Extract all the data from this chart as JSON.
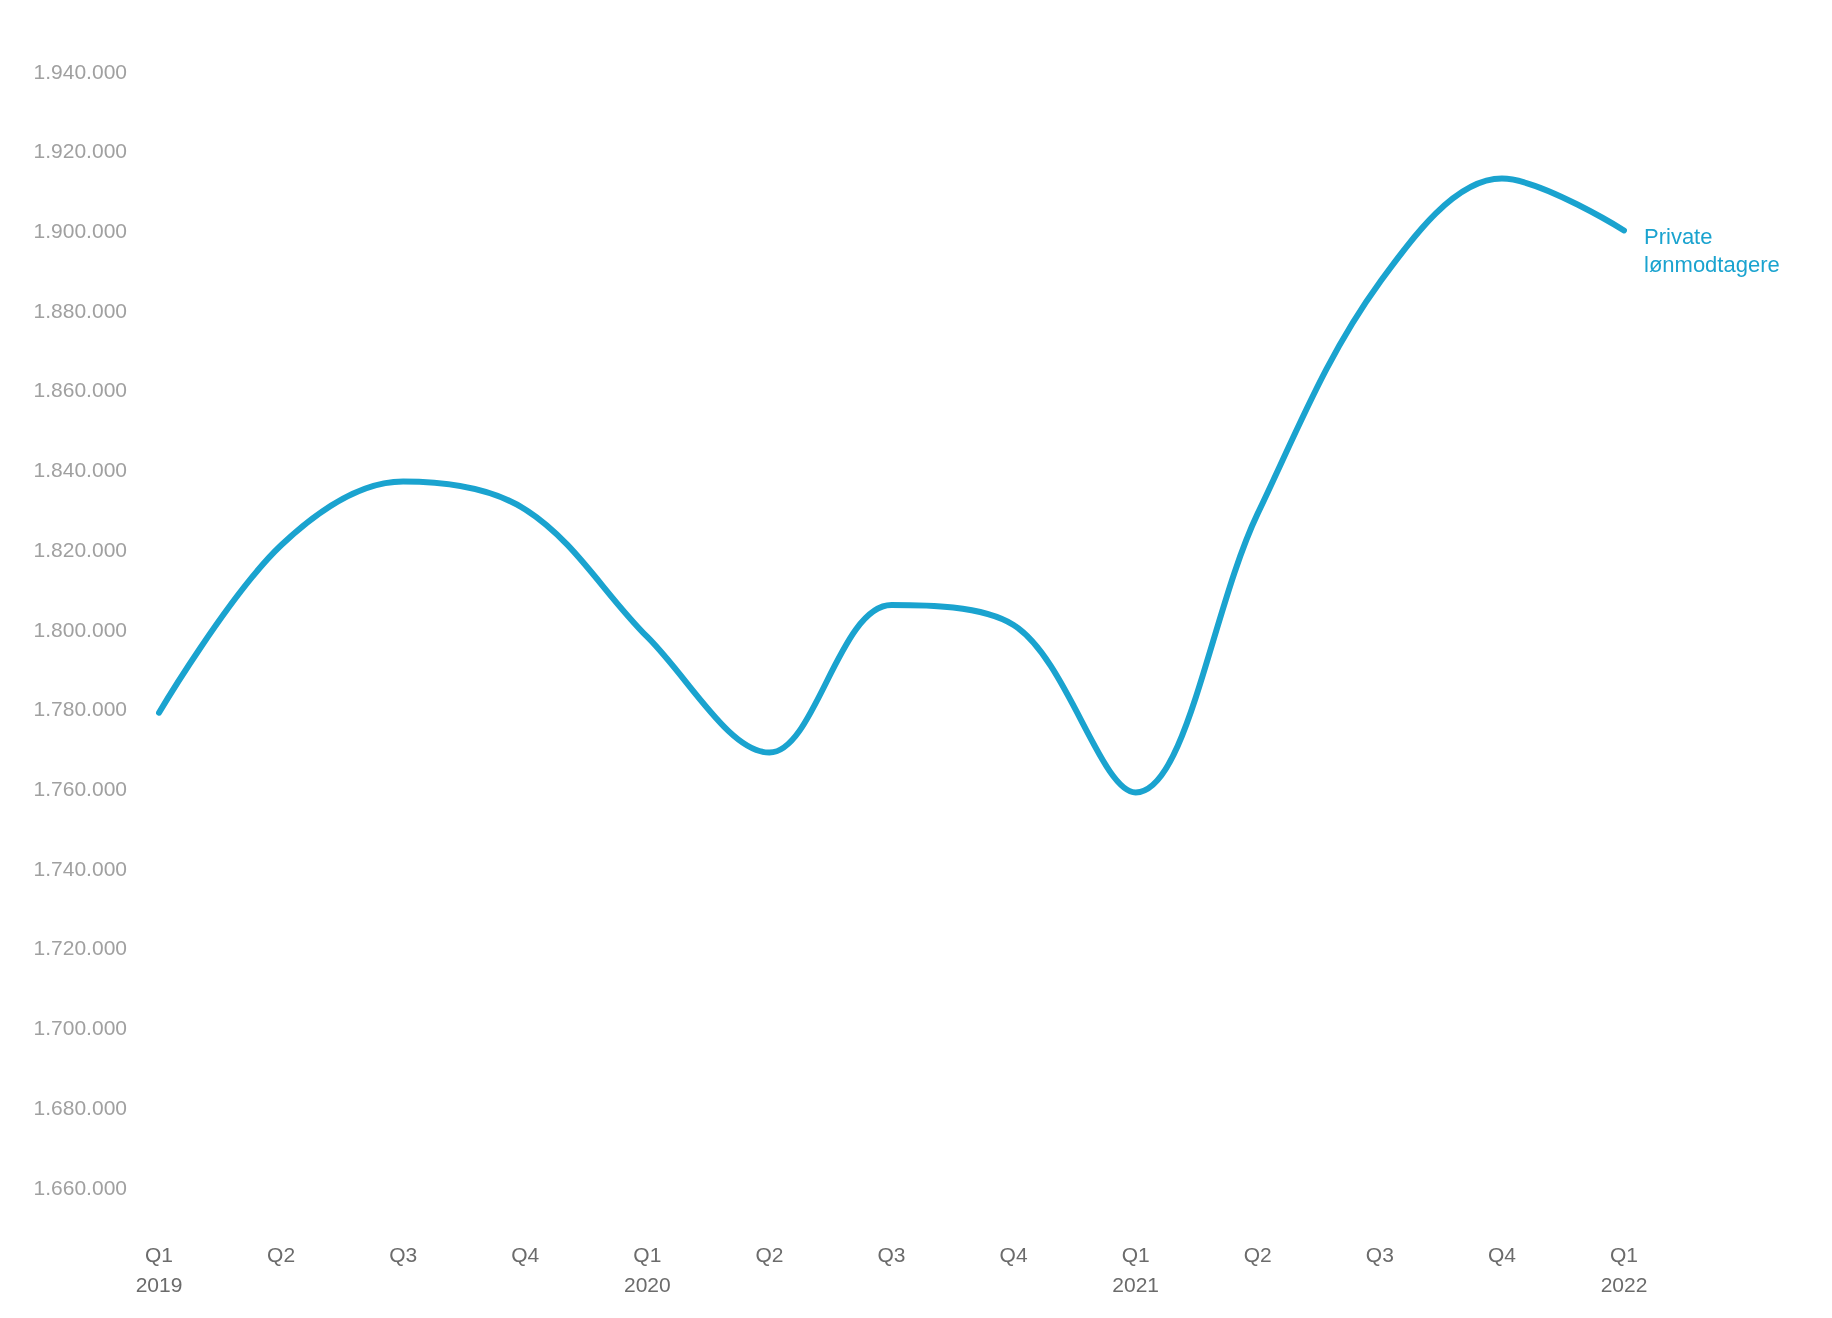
{
  "chart_data": {
    "type": "line",
    "categories": [
      "Q1\n2019",
      "Q2",
      "Q3",
      "Q4",
      "Q1\n2020",
      "Q2",
      "Q3",
      "Q4",
      "Q1\n2021",
      "Q2",
      "Q3",
      "Q4",
      "Q1\n2022"
    ],
    "series": [
      {
        "name": "Private lønmodtagere",
        "color": "#1aa3cf",
        "values": [
          1779000,
          1821000,
          1837000,
          1830000,
          1798000,
          1769000,
          1806000,
          1801000,
          1759000,
          1829000,
          1887000,
          1913000,
          1900000
        ]
      }
    ],
    "ylim": [
      1660000,
      1940000
    ],
    "yticks": [
      {
        "value": 1660000,
        "label": "1.660.000"
      },
      {
        "value": 1680000,
        "label": "1.680.000"
      },
      {
        "value": 1700000,
        "label": "1.700.000"
      },
      {
        "value": 1720000,
        "label": "1.720.000"
      },
      {
        "value": 1740000,
        "label": "1.740.000"
      },
      {
        "value": 1760000,
        "label": "1.760.000"
      },
      {
        "value": 1780000,
        "label": "1.780.000"
      },
      {
        "value": 1800000,
        "label": "1.800.000"
      },
      {
        "value": 1820000,
        "label": "1.820.000"
      },
      {
        "value": 1840000,
        "label": "1.840.000"
      },
      {
        "value": 1860000,
        "label": "1.860.000"
      },
      {
        "value": 1880000,
        "label": "1.880.000"
      },
      {
        "value": 1900000,
        "label": "1.900.000"
      },
      {
        "value": 1920000,
        "label": "1.920.000"
      },
      {
        "value": 1940000,
        "label": "1.940.000"
      }
    ],
    "grid": false,
    "legend": false,
    "marker": "none",
    "line_style": "solid"
  }
}
